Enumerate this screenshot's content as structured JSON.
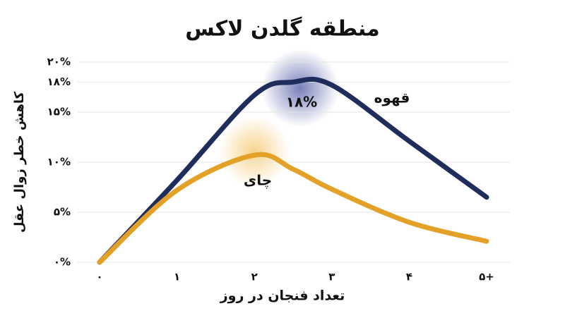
{
  "chart_data": {
    "type": "line",
    "title": "منطقه گلدن لاکس",
    "x_label": "تعداد فنجان در روز",
    "y_label": "کاهش خطر زوال عقل",
    "x": [
      0,
      1,
      2,
      2.5,
      3,
      4,
      5
    ],
    "series": [
      {
        "name": "قهوه",
        "color": "#1f2d5c",
        "values": [
          0,
          8.2,
          16.7,
          18,
          17.7,
          12.1,
          6.5
        ]
      },
      {
        "name": "چای",
        "color": "#e3a128",
        "values": [
          0,
          7.2,
          10.7,
          9.3,
          7.3,
          4.0,
          2.1
        ]
      }
    ],
    "annotation": "۱۸%",
    "xlim": [
      0,
      5
    ],
    "xticks": [
      {
        "value": 0,
        "label": "۰"
      },
      {
        "value": 1,
        "label": "۱"
      },
      {
        "value": 2,
        "label": "۲"
      },
      {
        "value": 3,
        "label": "۳"
      },
      {
        "value": 4,
        "label": "۴"
      },
      {
        "value": 5,
        "label": "۵+"
      }
    ],
    "ylim": [
      0,
      20
    ],
    "yticks": [
      {
        "value": 0,
        "label": "۰%"
      },
      {
        "value": 5,
        "label": "۵%"
      },
      {
        "value": 10,
        "label": "۱۰%"
      },
      {
        "value": 15,
        "label": "۱۵%"
      },
      {
        "value": 18,
        "label": "۱۸%"
      },
      {
        "value": 20,
        "label": "۲۰%"
      }
    ],
    "grid": true
  }
}
